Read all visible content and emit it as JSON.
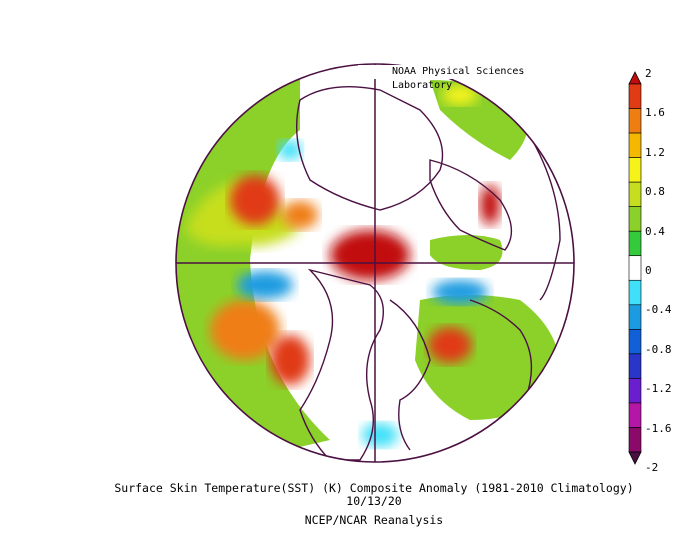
{
  "attribution": "NOAA Physical Sciences Laboratory",
  "caption": {
    "line1": "Surface Skin Temperature(SST) (K) Composite Anomaly (1981-2010 Climatology)",
    "line2": "10/13/20",
    "line3": "NCEP/NCAR Reanalysis"
  },
  "colorbar": {
    "colors": [
      "#4b1042",
      "#8a0a6a",
      "#b416a6",
      "#6a1ecf",
      "#2a35c9",
      "#1160d8",
      "#1c9be0",
      "#3fe0f8",
      "#ffffff",
      "#35c93c",
      "#8cd12a",
      "#c6de1f",
      "#f6f31a",
      "#f5b800",
      "#ef7e12",
      "#e03b14",
      "#c10c0c"
    ],
    "labels": [
      "2",
      "1.6",
      "1.2",
      "0.8",
      "0.4",
      "0",
      "-0.4",
      "-0.8",
      "-1.2",
      "-1.6",
      "-2"
    ]
  }
}
